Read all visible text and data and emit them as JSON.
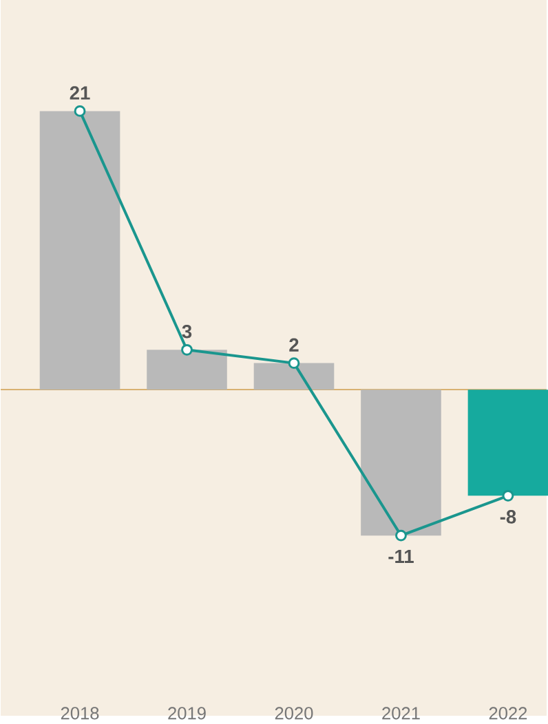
{
  "chart_data": {
    "type": "bar",
    "categories": [
      "2018",
      "2019",
      "2020",
      "2021",
      "2022"
    ],
    "ref_lines": [
      {
        "axis": "y",
        "value": 0,
        "color": "#d4a860"
      }
    ],
    "series": [
      {
        "values": [
          21,
          3,
          2,
          -11,
          -8
        ],
        "value_labels": [
          "21",
          "3",
          "2",
          "-11",
          "-8"
        ],
        "colors": [
          "#b9b9b9",
          "#b9b9b9",
          "#b9b9b9",
          "#b9b9b9",
          "#16aa9e"
        ]
      },
      {
        "type": "line",
        "values": [
          21,
          3,
          2,
          -11,
          -8
        ],
        "color": "#1a968e",
        "marker": "circle"
      }
    ]
  }
}
